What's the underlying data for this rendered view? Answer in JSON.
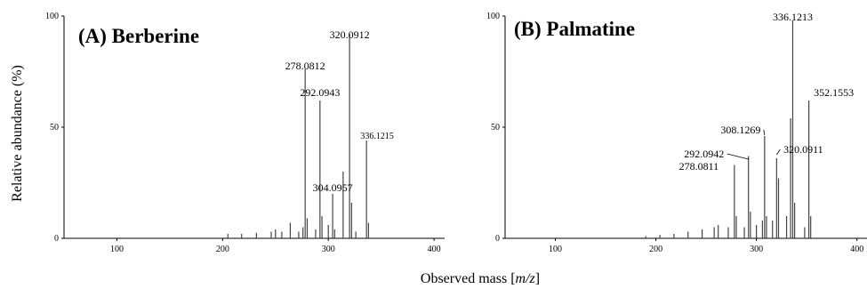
{
  "figure": {
    "ylabel": "Relative abundance (%)",
    "xlabel_prefix": "Observed mass [",
    "xlabel_var": "m/z",
    "xlabel_suffix": "]"
  },
  "chart_data": [
    {
      "type": "bar",
      "title": "(A) Berberine",
      "xlim": [
        50,
        410
      ],
      "ylim": [
        0,
        100
      ],
      "xticks": [
        100,
        200,
        300,
        400
      ],
      "yticks": [
        0,
        50,
        100
      ],
      "peaks": [
        {
          "x": 205,
          "y": 2
        },
        {
          "x": 218,
          "y": 2
        },
        {
          "x": 232,
          "y": 2.5
        },
        {
          "x": 246,
          "y": 3
        },
        {
          "x": 250,
          "y": 4
        },
        {
          "x": 256,
          "y": 3
        },
        {
          "x": 264,
          "y": 7
        },
        {
          "x": 272,
          "y": 3
        },
        {
          "x": 276,
          "y": 5
        },
        {
          "x": 278.0812,
          "y": 76
        },
        {
          "x": 280,
          "y": 9
        },
        {
          "x": 288,
          "y": 4
        },
        {
          "x": 292.0943,
          "y": 62
        },
        {
          "x": 294,
          "y": 10
        },
        {
          "x": 300,
          "y": 6
        },
        {
          "x": 304.0957,
          "y": 20
        },
        {
          "x": 306,
          "y": 4
        },
        {
          "x": 314,
          "y": 30
        },
        {
          "x": 320.0912,
          "y": 92
        },
        {
          "x": 322,
          "y": 16
        },
        {
          "x": 326,
          "y": 3
        },
        {
          "x": 336.1215,
          "y": 44
        },
        {
          "x": 338,
          "y": 7
        }
      ],
      "labels": [
        {
          "text": "278.0812",
          "x": 278.0812
        },
        {
          "text": "292.0943",
          "x": 292.0943
        },
        {
          "text": "320.0912",
          "x": 320.0912
        },
        {
          "text": "336.1215",
          "x": 336.1215
        },
        {
          "text": "304.0957",
          "x": 304.0957
        }
      ]
    },
    {
      "type": "bar",
      "title": "(B) Palmatine",
      "xlim": [
        50,
        410
      ],
      "ylim": [
        0,
        100
      ],
      "xticks": [
        100,
        200,
        300,
        400
      ],
      "yticks": [
        0,
        50,
        100
      ],
      "peaks": [
        {
          "x": 190,
          "y": 1
        },
        {
          "x": 204,
          "y": 1.5
        },
        {
          "x": 218,
          "y": 2
        },
        {
          "x": 232,
          "y": 3
        },
        {
          "x": 246,
          "y": 4
        },
        {
          "x": 258,
          "y": 5
        },
        {
          "x": 262,
          "y": 6
        },
        {
          "x": 272,
          "y": 5
        },
        {
          "x": 278.0811,
          "y": 33
        },
        {
          "x": 280,
          "y": 10
        },
        {
          "x": 288,
          "y": 5
        },
        {
          "x": 292.0942,
          "y": 37
        },
        {
          "x": 294,
          "y": 12
        },
        {
          "x": 300,
          "y": 6
        },
        {
          "x": 306,
          "y": 8
        },
        {
          "x": 308.1269,
          "y": 46
        },
        {
          "x": 310,
          "y": 10
        },
        {
          "x": 316,
          "y": 8
        },
        {
          "x": 320.0911,
          "y": 36
        },
        {
          "x": 322,
          "y": 27
        },
        {
          "x": 330,
          "y": 10
        },
        {
          "x": 334,
          "y": 54
        },
        {
          "x": 336.1213,
          "y": 98
        },
        {
          "x": 338,
          "y": 16
        },
        {
          "x": 348,
          "y": 5
        },
        {
          "x": 352.1553,
          "y": 62
        },
        {
          "x": 354,
          "y": 10
        }
      ],
      "labels": [
        {
          "text": "336.1213",
          "x": 336.1213
        },
        {
          "text": "352.1553",
          "x": 352.1553
        },
        {
          "text": "308.1269",
          "x": 308.1269
        },
        {
          "text": "320.0911",
          "x": 320.0911
        },
        {
          "text": "292.0942",
          "x": 292.0942
        },
        {
          "text": "278.0811",
          "x": 278.0811
        }
      ]
    }
  ]
}
